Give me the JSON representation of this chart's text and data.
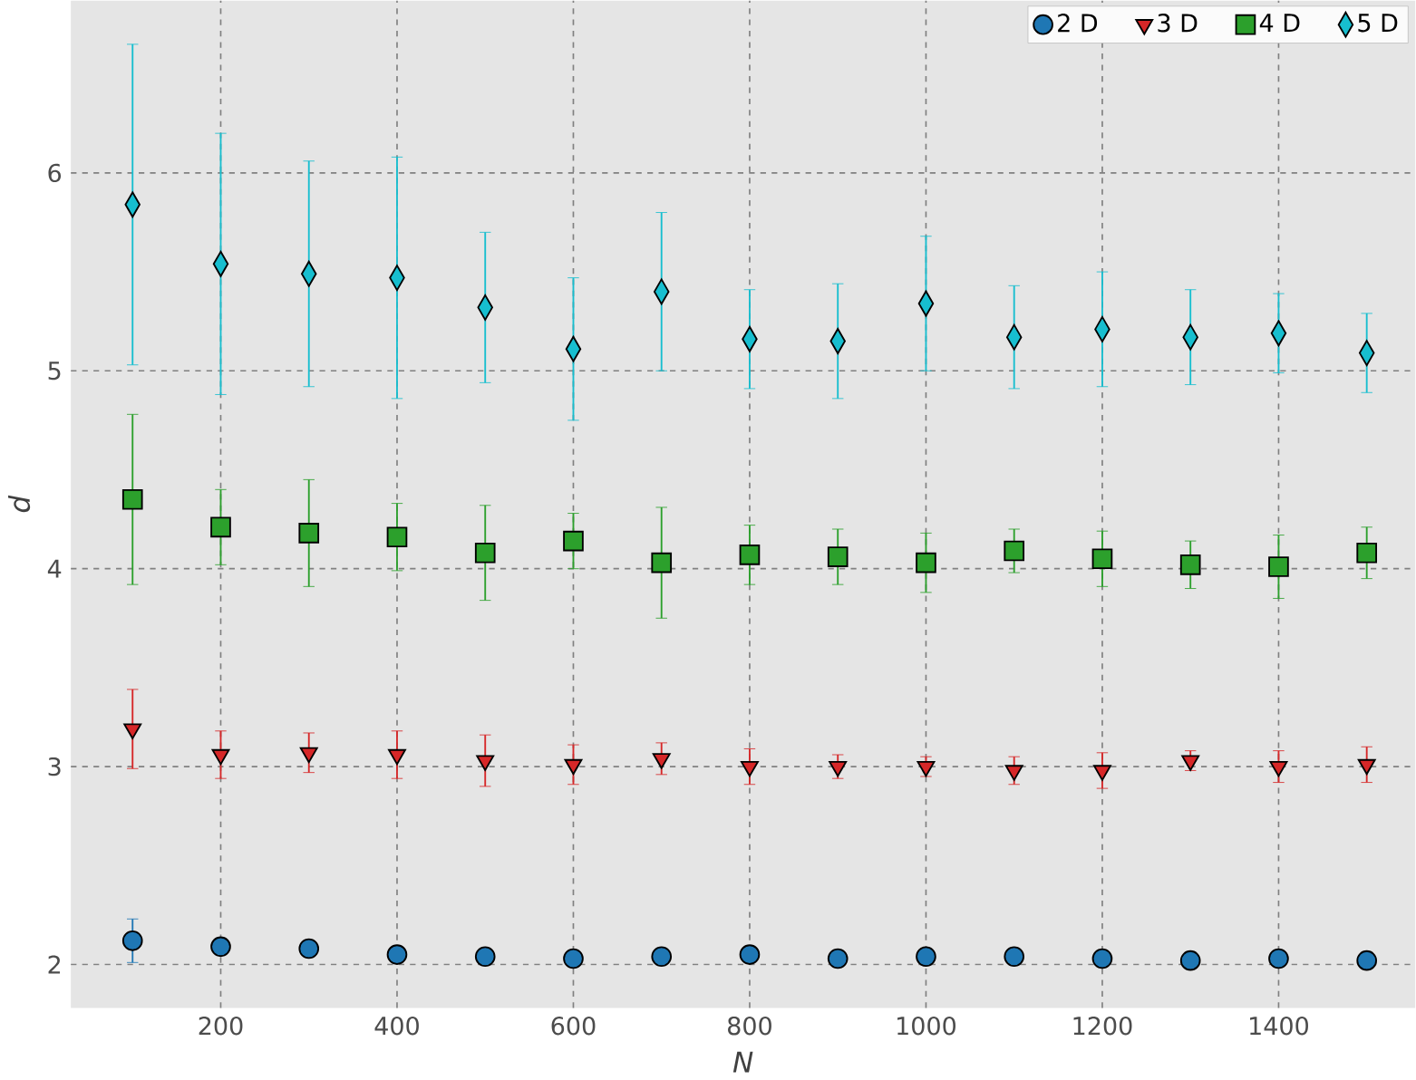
{
  "chart_data": {
    "type": "scatter",
    "xlabel": "N",
    "ylabel": "d",
    "x": [
      100,
      200,
      300,
      400,
      500,
      600,
      700,
      800,
      900,
      1000,
      1100,
      1200,
      1300,
      1400,
      1500
    ],
    "series": [
      {
        "name": "2 D",
        "color": "#1f77b4",
        "marker": "circle",
        "values": [
          2.12,
          2.09,
          2.08,
          2.05,
          2.04,
          2.03,
          2.04,
          2.05,
          2.03,
          2.04,
          2.04,
          2.03,
          2.02,
          2.03,
          2.02
        ],
        "errors": [
          0.11,
          0.02,
          0.02,
          0.02,
          0.02,
          0.02,
          0.02,
          0.02,
          0.02,
          0.02,
          0.02,
          0.02,
          0.02,
          0.02,
          0.02
        ]
      },
      {
        "name": "3 D",
        "color": "#d62728",
        "marker": "triangle",
        "values": [
          3.19,
          3.06,
          3.07,
          3.06,
          3.03,
          3.01,
          3.04,
          3.0,
          3.0,
          3.0,
          2.98,
          2.98,
          3.03,
          3.0,
          3.01
        ],
        "errors": [
          0.2,
          0.12,
          0.1,
          0.12,
          0.13,
          0.1,
          0.08,
          0.09,
          0.06,
          0.05,
          0.07,
          0.09,
          0.05,
          0.08,
          0.09
        ]
      },
      {
        "name": "4 D",
        "color": "#2ca02c",
        "marker": "square",
        "values": [
          4.35,
          4.21,
          4.18,
          4.16,
          4.08,
          4.14,
          4.03,
          4.07,
          4.06,
          4.03,
          4.09,
          4.05,
          4.02,
          4.01,
          4.08
        ],
        "errors": [
          0.43,
          0.19,
          0.27,
          0.17,
          0.24,
          0.14,
          0.28,
          0.15,
          0.14,
          0.15,
          0.11,
          0.14,
          0.12,
          0.16,
          0.13
        ]
      },
      {
        "name": "5 D",
        "color": "#17becf",
        "marker": "diamond",
        "values": [
          5.84,
          5.54,
          5.49,
          5.47,
          5.32,
          5.11,
          5.4,
          5.16,
          5.15,
          5.34,
          5.17,
          5.21,
          5.17,
          5.19,
          5.09
        ],
        "errors": [
          0.81,
          0.66,
          0.57,
          0.61,
          0.38,
          0.36,
          0.4,
          0.25,
          0.29,
          0.34,
          0.26,
          0.29,
          0.24,
          0.2,
          0.2
        ]
      }
    ],
    "xlim": [
      30,
      1555
    ],
    "ylim": [
      1.78,
      6.87
    ],
    "xticks": [
      200,
      400,
      600,
      800,
      1000,
      1200,
      1400
    ],
    "yticks": [
      2,
      3,
      4,
      5,
      6
    ],
    "grid": true,
    "legend": "top right"
  }
}
